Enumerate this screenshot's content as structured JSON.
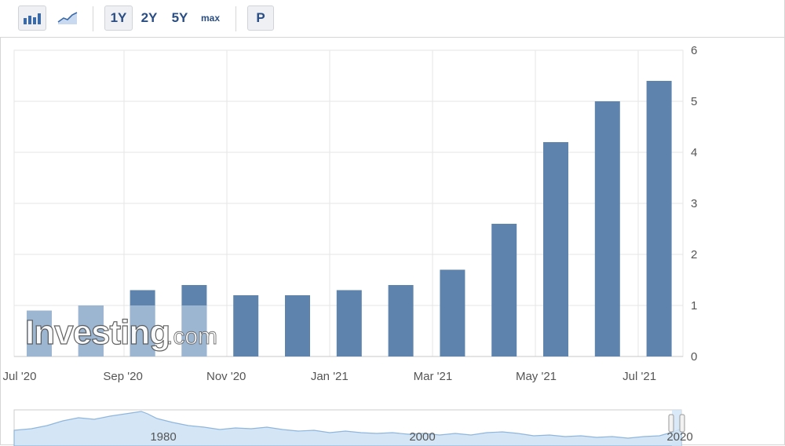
{
  "toolbar": {
    "chart_type_icons": [
      "bar-chart-icon",
      "line-chart-icon"
    ],
    "periods": [
      "1Y",
      "2Y",
      "5Y",
      "max"
    ],
    "active_period": "1Y",
    "p_label": "P"
  },
  "watermark": {
    "brand": "Investing",
    "suffix": ".com"
  },
  "colors": {
    "bar": "#5e84ad",
    "bar_light": "#a7bdd6",
    "grid": "#e6e6e6",
    "navigator_fill": "#d4e6f5",
    "navigator_line": "#8fb6dc"
  },
  "chart_data": {
    "type": "bar",
    "title": "",
    "xlabel": "",
    "ylabel": "",
    "ylim": [
      0,
      6
    ],
    "y_ticks": [
      "0",
      "1",
      "2",
      "3",
      "4",
      "5",
      "6"
    ],
    "categories": [
      "Jul '20",
      "Aug '20",
      "Sep '20",
      "Oct '20",
      "Nov '20",
      "Dec '20",
      "Jan '21",
      "Feb '21",
      "Mar '21",
      "Apr '21",
      "May '21",
      "Jun '21",
      "Jul '21"
    ],
    "values": [
      0.9,
      1.0,
      1.3,
      1.4,
      1.2,
      1.2,
      1.3,
      1.4,
      1.7,
      2.6,
      4.2,
      5.0,
      5.4
    ],
    "x_tick_labels": [
      "Jul '20",
      "Sep '20",
      "Nov '20",
      "Jan '21",
      "Mar '21",
      "May '21",
      "Jul '21"
    ],
    "grid": true,
    "y_axis_position": "right",
    "navigator": {
      "labels": [
        "1980",
        "2000",
        "2020"
      ]
    }
  }
}
